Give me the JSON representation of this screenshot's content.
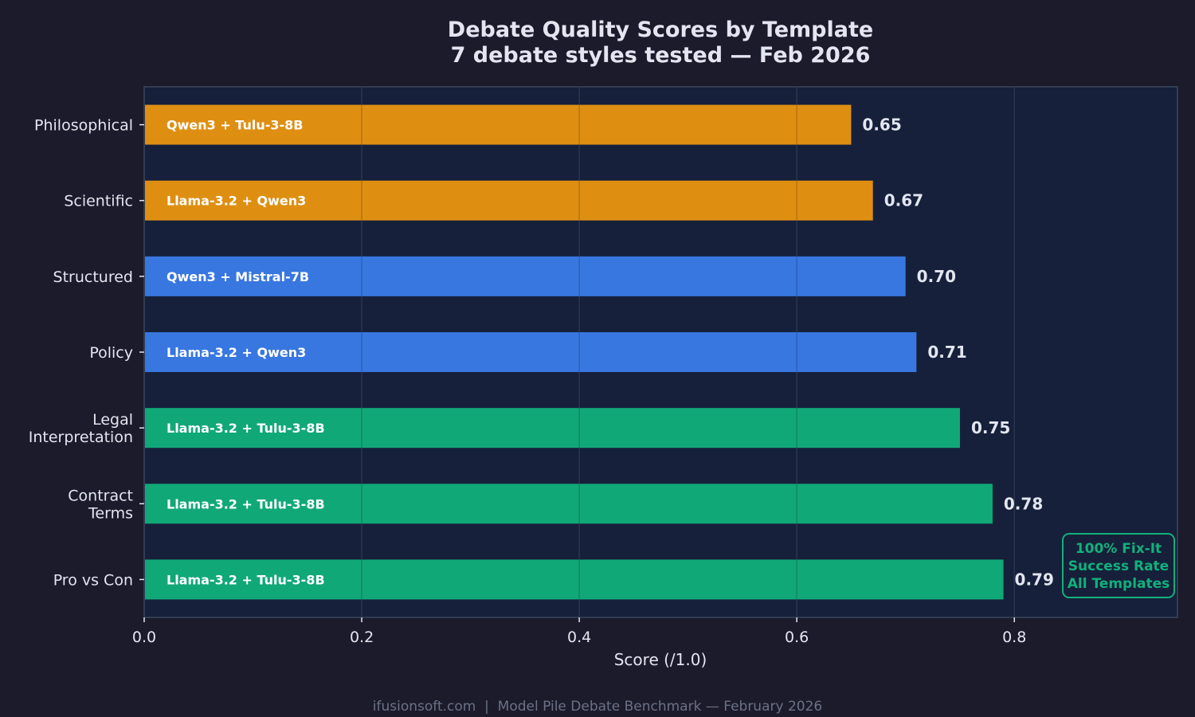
{
  "chart_data": {
    "type": "bar",
    "orientation": "horizontal",
    "title": "Debate Quality Scores by Template",
    "subtitle": "7 debate styles tested — Feb 2026",
    "xlabel": "Score (/1.0)",
    "ylabel": "",
    "xlim": [
      0,
      0.95
    ],
    "xticks": [
      "0.0",
      "0.2",
      "0.4",
      "0.6",
      "0.8"
    ],
    "grid": "vertical",
    "categories": [
      "Philosophical",
      "Scientific",
      "Structured",
      "Policy",
      "Legal\nInterpretation",
      "Contract\nTerms",
      "Pro vs Con"
    ],
    "values": [
      0.65,
      0.67,
      0.7,
      0.71,
      0.75,
      0.78,
      0.79
    ],
    "value_labels": [
      "0.65",
      "0.67",
      "0.70",
      "0.71",
      "0.75",
      "0.78",
      "0.79"
    ],
    "bar_labels": [
      "Qwen3 + Tulu-3-8B",
      "Llama-3.2 + Qwen3",
      "Qwen3 + Mistral-7B",
      "Llama-3.2 + Qwen3",
      "Llama-3.2 + Tulu-3-8B",
      "Llama-3.2 + Tulu-3-8B",
      "Llama-3.2 + Tulu-3-8B"
    ],
    "bar_colors": [
      "#de8f12",
      "#de8f12",
      "#3877e0",
      "#3877e0",
      "#11a877",
      "#11a877",
      "#11a877"
    ],
    "annotation": {
      "lines": [
        "100% Fix-It",
        "Success Rate",
        "All Templates"
      ],
      "color": "#11b07c"
    }
  },
  "footer": "ifusionsoft.com  |  Model Pile Debate Benchmark — February 2026",
  "colors": {
    "background": "#1b1b2b",
    "plot_background": "#16203b",
    "text": "#e3e6f0",
    "muted": "#6b7286"
  }
}
